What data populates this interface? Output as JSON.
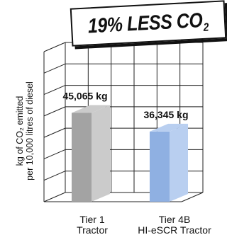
{
  "banner": {
    "text": "19% LESS CO",
    "subscript": "2"
  },
  "chart_data": {
    "type": "bar",
    "categories": [
      "Tier 1 Tractor",
      "Tier 4B HI-eSCR Tractor"
    ],
    "category_lines": [
      [
        "Tier 1",
        "Tractor"
      ],
      [
        "Tier 4B",
        "HI-eSCR Tractor"
      ]
    ],
    "values": [
      45065,
      36345
    ],
    "value_labels": [
      "45,065 kg",
      "36,345 kg"
    ],
    "ylabel_lines": [
      "kg of CO₂ emitted",
      "per 10,000 litres of diesel"
    ],
    "ylim": [
      0,
      70000
    ],
    "grid": true,
    "bar_colors": [
      {
        "front": "#a3a3a3",
        "side": "#cbcbcb"
      },
      {
        "front": "#8fb0e2",
        "side": "#b9cff0"
      }
    ],
    "grid_color": "#222222"
  }
}
